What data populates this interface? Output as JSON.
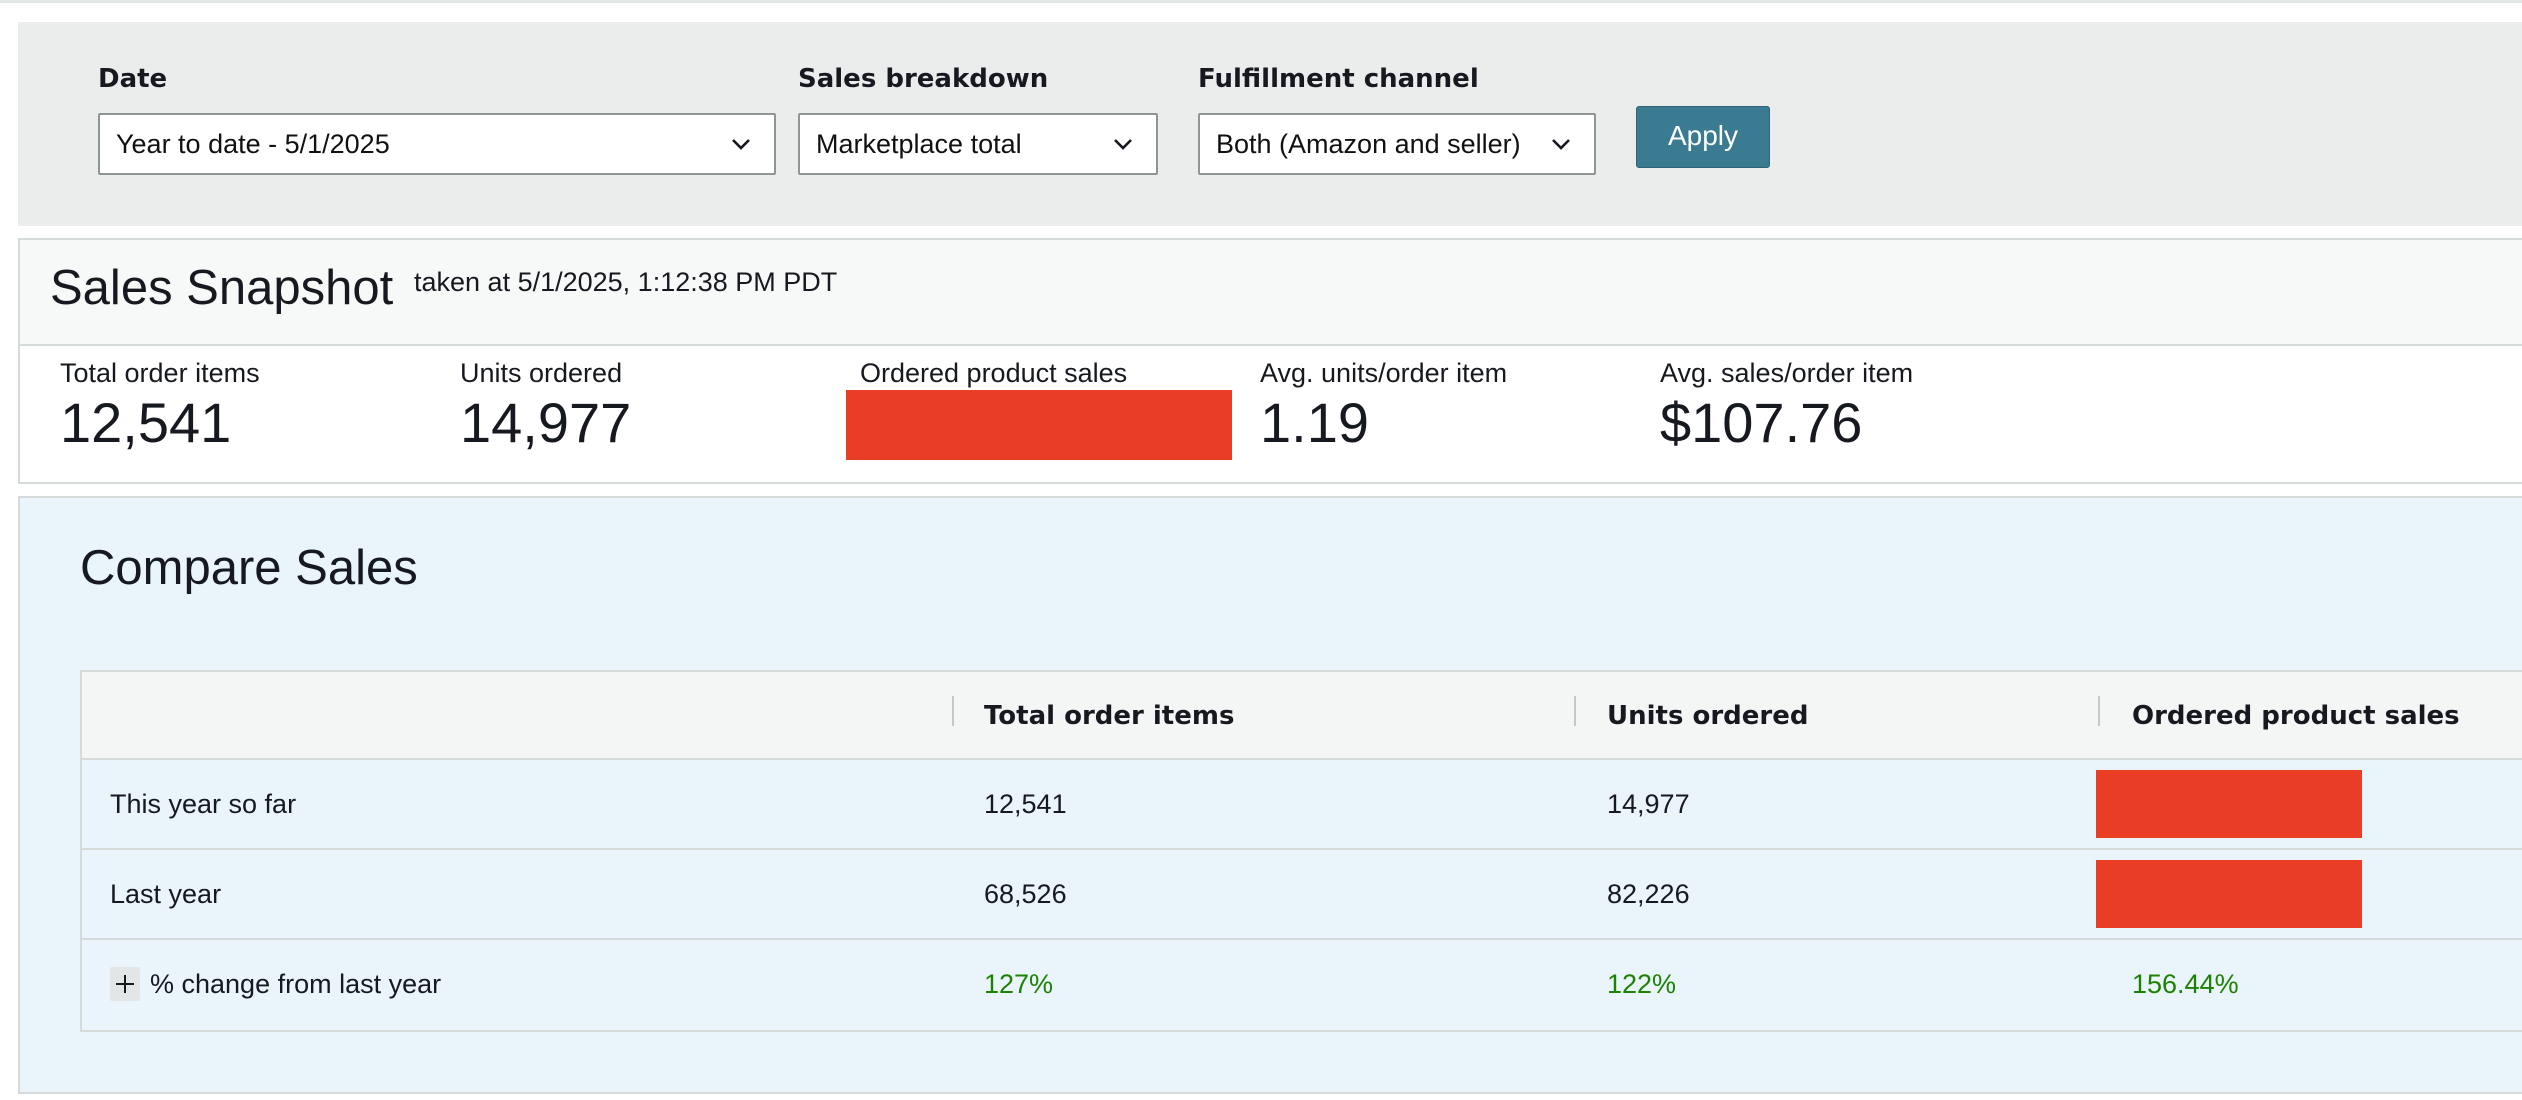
{
  "filters": {
    "date": {
      "label": "Date",
      "value": "Year to date - 5/1/2025"
    },
    "sales_breakdown": {
      "label": "Sales breakdown",
      "value": "Marketplace total"
    },
    "fulfillment_channel": {
      "label": "Fulfillment channel",
      "value": "Both (Amazon and seller)"
    },
    "apply_label": "Apply"
  },
  "snapshot": {
    "title": "Sales Snapshot",
    "timestamp": "taken at 5/1/2025, 1:12:38 PM PDT",
    "metrics": {
      "total_order_items": {
        "label": "Total order items",
        "value": "12,541"
      },
      "units_ordered": {
        "label": "Units ordered",
        "value": "14,977"
      },
      "ordered_product_sales": {
        "label": "Ordered product sales"
      },
      "avg_units_per_order_item": {
        "label": "Avg. units/order item",
        "value": "1.19"
      },
      "avg_sales_per_order_item": {
        "label": "Avg. sales/order item",
        "value": "$107.76"
      }
    }
  },
  "compare": {
    "title": "Compare Sales",
    "columns": [
      "Total order items",
      "Units ordered",
      "Ordered product sales"
    ],
    "rows": {
      "this_year": {
        "label": "This year so far",
        "total_order_items": "12,541",
        "units_ordered": "14,977"
      },
      "last_year": {
        "label": "Last year",
        "total_order_items": "68,526",
        "units_ordered": "82,226"
      },
      "change": {
        "label": "% change from last year",
        "total_order_items": "127%",
        "units_ordered": "122%",
        "ordered_product_sales": "156.44%"
      }
    }
  },
  "colors": {
    "apply_button": "#3a7b91",
    "redaction": "#e93d25",
    "positive_change": "#1d8102",
    "compare_background": "#e9f4fb"
  },
  "icons": {
    "dropdown": "chevron-down-icon",
    "expand": "plus-icon"
  }
}
